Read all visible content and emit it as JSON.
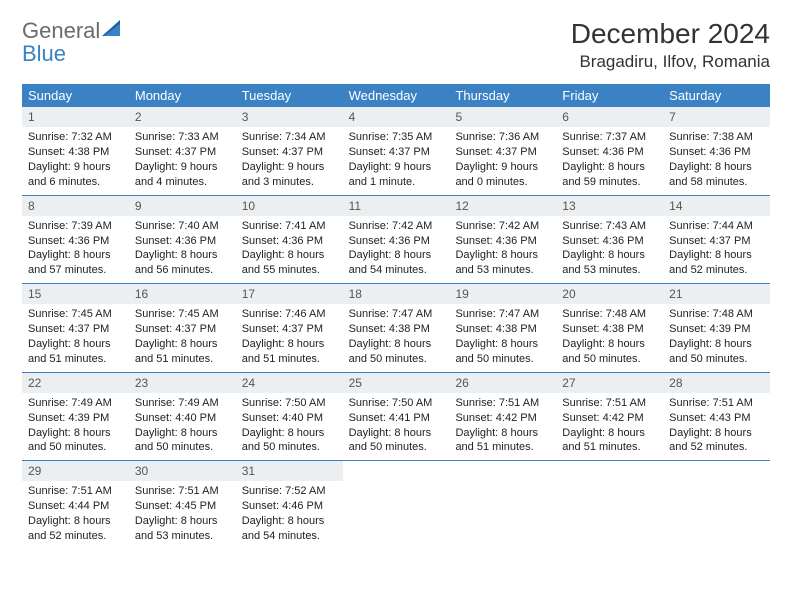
{
  "logo": {
    "general": "General",
    "blue": "Blue"
  },
  "title": "December 2024",
  "location": "Bragadiru, Ilfov, Romania",
  "colors": {
    "header_bg": "#3b82c4",
    "daynum_bg": "#eceff1",
    "border": "#3b82c4",
    "text": "#333333",
    "logo_gray": "#6b6b6b",
    "logo_blue": "#3b82c4"
  },
  "dayHeaders": [
    "Sunday",
    "Monday",
    "Tuesday",
    "Wednesday",
    "Thursday",
    "Friday",
    "Saturday"
  ],
  "weeks": [
    [
      {
        "n": "1",
        "sr": "Sunrise: 7:32 AM",
        "ss": "Sunset: 4:38 PM",
        "dl": "Daylight: 9 hours and 6 minutes."
      },
      {
        "n": "2",
        "sr": "Sunrise: 7:33 AM",
        "ss": "Sunset: 4:37 PM",
        "dl": "Daylight: 9 hours and 4 minutes."
      },
      {
        "n": "3",
        "sr": "Sunrise: 7:34 AM",
        "ss": "Sunset: 4:37 PM",
        "dl": "Daylight: 9 hours and 3 minutes."
      },
      {
        "n": "4",
        "sr": "Sunrise: 7:35 AM",
        "ss": "Sunset: 4:37 PM",
        "dl": "Daylight: 9 hours and 1 minute."
      },
      {
        "n": "5",
        "sr": "Sunrise: 7:36 AM",
        "ss": "Sunset: 4:37 PM",
        "dl": "Daylight: 9 hours and 0 minutes."
      },
      {
        "n": "6",
        "sr": "Sunrise: 7:37 AM",
        "ss": "Sunset: 4:36 PM",
        "dl": "Daylight: 8 hours and 59 minutes."
      },
      {
        "n": "7",
        "sr": "Sunrise: 7:38 AM",
        "ss": "Sunset: 4:36 PM",
        "dl": "Daylight: 8 hours and 58 minutes."
      }
    ],
    [
      {
        "n": "8",
        "sr": "Sunrise: 7:39 AM",
        "ss": "Sunset: 4:36 PM",
        "dl": "Daylight: 8 hours and 57 minutes."
      },
      {
        "n": "9",
        "sr": "Sunrise: 7:40 AM",
        "ss": "Sunset: 4:36 PM",
        "dl": "Daylight: 8 hours and 56 minutes."
      },
      {
        "n": "10",
        "sr": "Sunrise: 7:41 AM",
        "ss": "Sunset: 4:36 PM",
        "dl": "Daylight: 8 hours and 55 minutes."
      },
      {
        "n": "11",
        "sr": "Sunrise: 7:42 AM",
        "ss": "Sunset: 4:36 PM",
        "dl": "Daylight: 8 hours and 54 minutes."
      },
      {
        "n": "12",
        "sr": "Sunrise: 7:42 AM",
        "ss": "Sunset: 4:36 PM",
        "dl": "Daylight: 8 hours and 53 minutes."
      },
      {
        "n": "13",
        "sr": "Sunrise: 7:43 AM",
        "ss": "Sunset: 4:36 PM",
        "dl": "Daylight: 8 hours and 53 minutes."
      },
      {
        "n": "14",
        "sr": "Sunrise: 7:44 AM",
        "ss": "Sunset: 4:37 PM",
        "dl": "Daylight: 8 hours and 52 minutes."
      }
    ],
    [
      {
        "n": "15",
        "sr": "Sunrise: 7:45 AM",
        "ss": "Sunset: 4:37 PM",
        "dl": "Daylight: 8 hours and 51 minutes."
      },
      {
        "n": "16",
        "sr": "Sunrise: 7:45 AM",
        "ss": "Sunset: 4:37 PM",
        "dl": "Daylight: 8 hours and 51 minutes."
      },
      {
        "n": "17",
        "sr": "Sunrise: 7:46 AM",
        "ss": "Sunset: 4:37 PM",
        "dl": "Daylight: 8 hours and 51 minutes."
      },
      {
        "n": "18",
        "sr": "Sunrise: 7:47 AM",
        "ss": "Sunset: 4:38 PM",
        "dl": "Daylight: 8 hours and 50 minutes."
      },
      {
        "n": "19",
        "sr": "Sunrise: 7:47 AM",
        "ss": "Sunset: 4:38 PM",
        "dl": "Daylight: 8 hours and 50 minutes."
      },
      {
        "n": "20",
        "sr": "Sunrise: 7:48 AM",
        "ss": "Sunset: 4:38 PM",
        "dl": "Daylight: 8 hours and 50 minutes."
      },
      {
        "n": "21",
        "sr": "Sunrise: 7:48 AM",
        "ss": "Sunset: 4:39 PM",
        "dl": "Daylight: 8 hours and 50 minutes."
      }
    ],
    [
      {
        "n": "22",
        "sr": "Sunrise: 7:49 AM",
        "ss": "Sunset: 4:39 PM",
        "dl": "Daylight: 8 hours and 50 minutes."
      },
      {
        "n": "23",
        "sr": "Sunrise: 7:49 AM",
        "ss": "Sunset: 4:40 PM",
        "dl": "Daylight: 8 hours and 50 minutes."
      },
      {
        "n": "24",
        "sr": "Sunrise: 7:50 AM",
        "ss": "Sunset: 4:40 PM",
        "dl": "Daylight: 8 hours and 50 minutes."
      },
      {
        "n": "25",
        "sr": "Sunrise: 7:50 AM",
        "ss": "Sunset: 4:41 PM",
        "dl": "Daylight: 8 hours and 50 minutes."
      },
      {
        "n": "26",
        "sr": "Sunrise: 7:51 AM",
        "ss": "Sunset: 4:42 PM",
        "dl": "Daylight: 8 hours and 51 minutes."
      },
      {
        "n": "27",
        "sr": "Sunrise: 7:51 AM",
        "ss": "Sunset: 4:42 PM",
        "dl": "Daylight: 8 hours and 51 minutes."
      },
      {
        "n": "28",
        "sr": "Sunrise: 7:51 AM",
        "ss": "Sunset: 4:43 PM",
        "dl": "Daylight: 8 hours and 52 minutes."
      }
    ],
    [
      {
        "n": "29",
        "sr": "Sunrise: 7:51 AM",
        "ss": "Sunset: 4:44 PM",
        "dl": "Daylight: 8 hours and 52 minutes."
      },
      {
        "n": "30",
        "sr": "Sunrise: 7:51 AM",
        "ss": "Sunset: 4:45 PM",
        "dl": "Daylight: 8 hours and 53 minutes."
      },
      {
        "n": "31",
        "sr": "Sunrise: 7:52 AM",
        "ss": "Sunset: 4:46 PM",
        "dl": "Daylight: 8 hours and 54 minutes."
      },
      {
        "empty": true
      },
      {
        "empty": true
      },
      {
        "empty": true
      },
      {
        "empty": true
      }
    ]
  ]
}
